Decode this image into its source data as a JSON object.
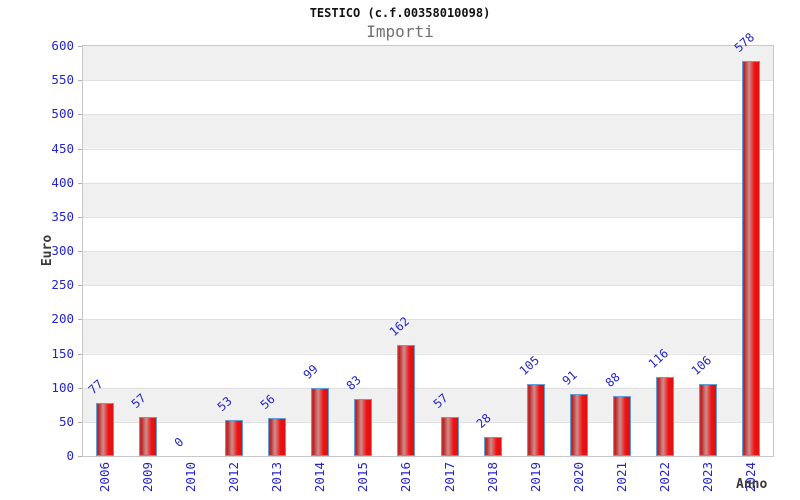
{
  "chart_data": {
    "type": "bar",
    "title": "TESTICO (c.f.00358010098)",
    "subtitle": "Importi",
    "xlabel": "Anno",
    "ylabel": "Euro",
    "categories": [
      "2006",
      "2009",
      "2010",
      "2012",
      "2013",
      "2014",
      "2015",
      "2016",
      "2017",
      "2018",
      "2019",
      "2020",
      "2021",
      "2022",
      "2023",
      "2024"
    ],
    "values": [
      77,
      57,
      0,
      53,
      56,
      99,
      83,
      162,
      57,
      28,
      105,
      91,
      88,
      116,
      106,
      578
    ],
    "ylim": [
      0,
      600
    ],
    "ytick_step": 50,
    "yticks": [
      0,
      50,
      100,
      150,
      200,
      250,
      300,
      350,
      400,
      450,
      500,
      550,
      600
    ],
    "grid": "horizontal-bands-alternating",
    "legend": "none",
    "bar_value_labels_rotated_deg": -42,
    "x_labels_rotated_deg": -90
  },
  "colors": {
    "label_blue": "#2424cc",
    "bar_border_blue": "#5e9fd8",
    "bar_red": "#ee1111",
    "band_gray": "#f0f0f0",
    "gridline_gray": "#e0e0e0",
    "plot_border_gray": "#c8c8c8",
    "tick_mark_gray": "#b0b0b0",
    "subtitle_gray": "#707070",
    "axis_title_dark": "#3a3a3a",
    "title_black": "#111111",
    "background": "#ffffff"
  }
}
